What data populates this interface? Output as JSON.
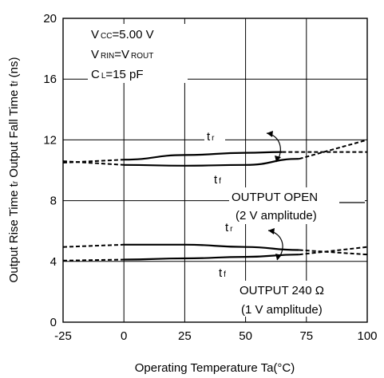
{
  "chart_data": {
    "type": "line",
    "xlabel": "Operating Temperature Ta(°C)",
    "ylabel_parts": {
      "a": "Output Rise Time t",
      "a_sub": "r",
      "b": " Output Fall Time t",
      "b_sub": "f",
      "c": " (ns)"
    },
    "xlim": [
      -25,
      100
    ],
    "ylim": [
      0,
      20
    ],
    "xticks": [
      "-25",
      "0",
      "25",
      "50",
      "75",
      "100"
    ],
    "yticks": [
      "0",
      "4",
      "8",
      "12",
      "16",
      "20"
    ],
    "grid": true,
    "conditions": {
      "line1_main": "V",
      "line1_sub": "CC",
      "line1_rest": "=5.00 V",
      "line2_main": "V",
      "line2_sub": "RIN",
      "line2_mid": "=V",
      "line2_sub2": "ROUT",
      "line3_main": "C",
      "line3_sub": "L",
      "line3_rest": "=15 pF"
    },
    "annotations": {
      "tr_main": "t",
      "tr_sub": "r",
      "tf_main": "t",
      "tf_sub": "f",
      "open_l1": "OUTPUT OPEN",
      "open_l2": "(2 V amplitude)",
      "load_l1": "OUTPUT 240 Ω",
      "load_l2": "(1 V amplitude)"
    },
    "series": [
      {
        "group": "OUTPUT OPEN",
        "curve": "tr",
        "solid": [
          [
            0,
            10.7
          ],
          [
            25,
            11.0
          ],
          [
            50,
            11.15
          ],
          [
            65,
            11.2
          ]
        ],
        "dashed_left": [
          [
            -25,
            10.5
          ],
          [
            0,
            10.7
          ]
        ],
        "dashed_right": [
          [
            65,
            11.2
          ],
          [
            100,
            11.2
          ]
        ]
      },
      {
        "group": "OUTPUT OPEN",
        "curve": "tf",
        "solid": [
          [
            0,
            10.35
          ],
          [
            25,
            10.3
          ],
          [
            50,
            10.35
          ],
          [
            72,
            10.75
          ]
        ],
        "dashed_left": [
          [
            -25,
            10.6
          ],
          [
            0,
            10.35
          ]
        ],
        "dashed_right": [
          [
            72,
            10.75
          ],
          [
            100,
            12.0
          ]
        ]
      },
      {
        "group": "OUTPUT 240 Ω",
        "curve": "tr",
        "solid": [
          [
            0,
            5.1
          ],
          [
            25,
            5.1
          ],
          [
            50,
            4.95
          ],
          [
            72,
            4.75
          ]
        ],
        "dashed_left": [
          [
            -25,
            4.95
          ],
          [
            0,
            5.1
          ]
        ],
        "dashed_right": [
          [
            72,
            4.75
          ],
          [
            100,
            4.45
          ]
        ]
      },
      {
        "group": "OUTPUT 240 Ω",
        "curve": "tf",
        "solid": [
          [
            0,
            4.12
          ],
          [
            25,
            4.2
          ],
          [
            50,
            4.3
          ],
          [
            72,
            4.45
          ]
        ],
        "dashed_left": [
          [
            -25,
            4.05
          ],
          [
            0,
            4.12
          ]
        ],
        "dashed_right": [
          [
            72,
            4.45
          ],
          [
            100,
            4.95
          ]
        ]
      }
    ]
  }
}
